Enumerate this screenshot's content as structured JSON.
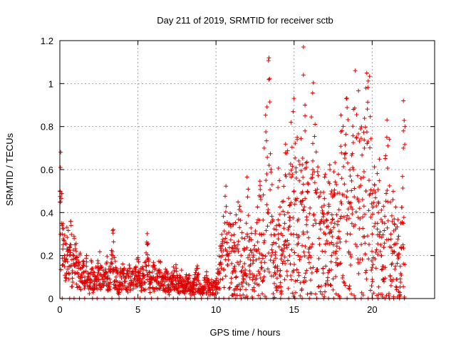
{
  "chart_data": {
    "type": "scatter",
    "title": "Day 211 of 2019, SRMTID for receiver sctb",
    "xlabel": "GPS time / hours",
    "ylabel": "SRMTID / TECUs",
    "xlim": [
      0,
      24
    ],
    "ylim": [
      0,
      1.2
    ],
    "xticks": [
      0,
      5,
      10,
      15,
      20
    ],
    "xtick_labels": [
      "0",
      "5",
      "10",
      "15",
      "20"
    ],
    "yticks": [
      0,
      0.2,
      0.4,
      0.6,
      0.8,
      1,
      1.2
    ],
    "ytick_labels": [
      "0",
      "0.2",
      "0.4",
      "0.6",
      "0.8",
      "1",
      "1.2"
    ],
    "grid": true,
    "marker": "+",
    "series": [
      {
        "name": "SRMTID",
        "color": "#dd0000",
        "x": [
          0.0,
          0.05,
          0.1,
          0.15,
          0.2,
          0.3,
          0.4,
          0.5,
          0.6,
          0.7,
          0.8,
          0.9,
          1.0,
          1.1,
          1.2,
          1.3,
          1.4,
          1.5,
          1.6,
          1.7,
          1.8,
          1.9,
          2.0,
          2.2,
          2.4,
          2.6,
          2.8,
          3.0,
          3.2,
          3.4,
          3.6,
          3.8,
          4.0,
          4.2,
          4.4,
          4.6,
          4.8,
          5.0,
          5.2,
          5.4,
          5.6,
          5.8,
          6.0,
          6.2,
          6.4,
          6.6,
          6.8,
          7.0,
          7.2,
          7.4,
          7.6,
          7.8,
          8.0,
          8.2,
          8.4,
          8.6,
          8.8,
          9.0,
          9.2,
          9.4,
          9.6,
          9.8,
          10.0,
          10.2,
          10.4,
          10.6,
          10.8,
          11.0,
          11.2,
          11.4,
          11.6,
          11.8,
          12.0,
          12.2,
          12.4,
          12.6,
          12.8,
          13.0,
          13.2,
          13.4,
          13.6,
          13.8,
          14.0,
          14.2,
          14.4,
          14.6,
          14.8,
          15.0,
          15.2,
          15.4,
          15.6,
          15.8,
          16.0,
          16.2,
          16.4,
          16.6,
          16.8,
          17.0,
          17.2,
          17.4,
          17.6,
          17.8,
          18.0,
          18.2,
          18.4,
          18.6,
          18.8,
          19.0,
          19.2,
          19.4,
          19.6,
          19.8,
          20.0,
          20.2,
          20.4,
          20.6,
          20.8,
          21.0,
          21.2,
          21.4,
          21.6,
          21.8,
          22.0,
          22.1
        ],
        "y": [
          0.5,
          0.45,
          0.35,
          0.3,
          0.25,
          0.2,
          0.18,
          0.22,
          0.15,
          0.25,
          0.12,
          0.2,
          0.15,
          0.18,
          0.1,
          0.14,
          0.08,
          0.12,
          0.1,
          0.15,
          0.09,
          0.06,
          0.12,
          0.08,
          0.1,
          0.14,
          0.07,
          0.12,
          0.09,
          0.2,
          0.1,
          0.06,
          0.12,
          0.08,
          0.1,
          0.07,
          0.09,
          0.12,
          0.08,
          0.1,
          0.18,
          0.07,
          0.1,
          0.08,
          0.12,
          0.06,
          0.09,
          0.05,
          0.08,
          0.1,
          0.06,
          0.08,
          0.05,
          0.09,
          0.04,
          0.06,
          0.1,
          0.03,
          0.05,
          0.08,
          0.04,
          0.06,
          0.05,
          0.12,
          0.2,
          0.28,
          0.18,
          0.22,
          0.15,
          0.25,
          0.2,
          0.12,
          0.3,
          0.18,
          0.1,
          0.22,
          0.3,
          0.2,
          0.55,
          0.62,
          0.25,
          0.15,
          0.3,
          0.2,
          0.35,
          0.4,
          0.3,
          0.5,
          0.25,
          0.45,
          0.3,
          0.38,
          0.2,
          0.6,
          0.35,
          0.28,
          0.22,
          0.3,
          0.4,
          0.2,
          0.35,
          0.28,
          0.45,
          0.38,
          0.5,
          0.3,
          0.6,
          0.75,
          0.42,
          0.38,
          0.5,
          0.55,
          0.3,
          0.35,
          0.4,
          0.2,
          0.35,
          0.45,
          0.3,
          0.25,
          0.2,
          0.15,
          0.35,
          0.8
        ]
      }
    ],
    "outliers": [
      {
        "x": 15.6,
        "y": 1.17
      },
      {
        "x": 15.6,
        "y": 1.04
      },
      {
        "x": 15.7,
        "y": 0.9
      },
      {
        "x": 15.7,
        "y": 0.85
      },
      {
        "x": 15.7,
        "y": 0.78
      },
      {
        "x": 14.8,
        "y": 0.82
      },
      {
        "x": 15.2,
        "y": 0.75
      },
      {
        "x": 18.8,
        "y": 0.88
      },
      {
        "x": 22.0,
        "y": 0.92
      },
      {
        "x": 22.0,
        "y": 0.78
      },
      {
        "x": 22.0,
        "y": 0.7
      },
      {
        "x": 15.2,
        "y": 0.74
      },
      {
        "x": 16.2,
        "y": 0.64
      },
      {
        "x": 17.4,
        "y": 0.5
      },
      {
        "x": 19.5,
        "y": 0.7
      }
    ]
  }
}
